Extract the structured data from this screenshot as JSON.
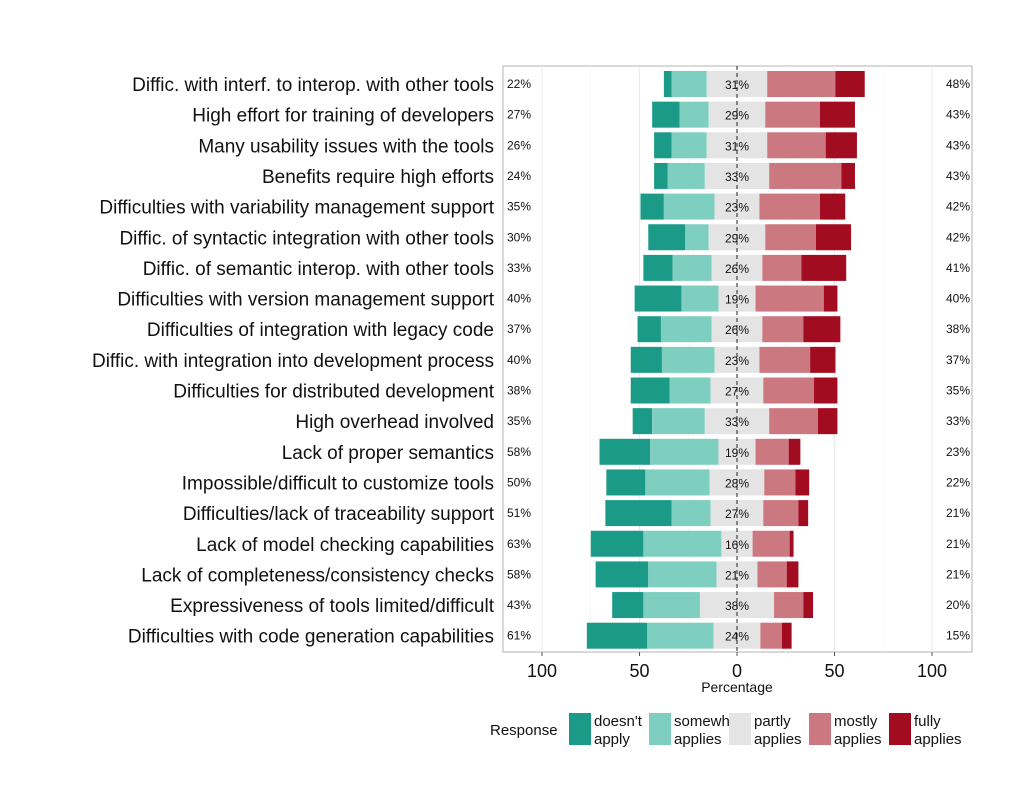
{
  "chart_data": {
    "type": "diverging-stacked-bar",
    "xlabel": "Percentage",
    "xlim": [
      -100,
      100
    ],
    "x_ticks": [
      -100,
      -50,
      0,
      50,
      100
    ],
    "x_tick_labels": [
      "100",
      "50",
      "0",
      "50",
      "100"
    ],
    "legend": {
      "title": "Response",
      "entries": [
        {
          "line1": "doesn't",
          "line2": "apply",
          "color": "#1b9a87"
        },
        {
          "line1": "somewhat",
          "line2": "applies",
          "color": "#7fcfc0"
        },
        {
          "line1": "partly",
          "line2": "applies",
          "color": "#e4e4e4"
        },
        {
          "line1": "mostly",
          "line2": "applies",
          "color": "#cc7880"
        },
        {
          "line1": "fully",
          "line2": "applies",
          "color": "#a20c20"
        }
      ]
    },
    "series_names": [
      "doesn't apply",
      "somewhat applies",
      "partly applies",
      "mostly applies",
      "fully applies"
    ],
    "rows": [
      {
        "label": "Diffic. with interf. to interop. with other tools",
        "values": [
          4,
          18,
          31,
          35,
          15
        ],
        "left_pct": "22%",
        "mid_pct": "31%",
        "right_pct": "48%"
      },
      {
        "label": "High effort for training of developers",
        "values": [
          14,
          15,
          29,
          28,
          18
        ],
        "left_pct": "27%",
        "mid_pct": "29%",
        "right_pct": "43%"
      },
      {
        "label": "Many usability issues with the tools",
        "values": [
          9,
          18,
          31,
          30,
          16
        ],
        "left_pct": "26%",
        "mid_pct": "31%",
        "right_pct": "43%"
      },
      {
        "label": "Benefits require high efforts",
        "values": [
          7,
          19,
          33,
          37,
          7
        ],
        "left_pct": "24%",
        "mid_pct": "33%",
        "right_pct": "43%"
      },
      {
        "label": "Difficulties with variability management support",
        "values": [
          12,
          26,
          23,
          31,
          13
        ],
        "left_pct": "35%",
        "mid_pct": "23%",
        "right_pct": "42%"
      },
      {
        "label": "Diffic. of syntactic integration with other tools",
        "values": [
          19,
          12,
          29,
          26,
          18
        ],
        "left_pct": "30%",
        "mid_pct": "29%",
        "right_pct": "42%"
      },
      {
        "label": "Diffic. of semantic interop. with other tools",
        "values": [
          15,
          20,
          26,
          20,
          23
        ],
        "left_pct": "33%",
        "mid_pct": "26%",
        "right_pct": "41%"
      },
      {
        "label": "Difficulties with version management support",
        "values": [
          24,
          19,
          19,
          35,
          7
        ],
        "left_pct": "40%",
        "mid_pct": "19%",
        "right_pct": "40%"
      },
      {
        "label": "Difficulties of integration with legacy code",
        "values": [
          12,
          26,
          26,
          21,
          19
        ],
        "left_pct": "37%",
        "mid_pct": "26%",
        "right_pct": "38%"
      },
      {
        "label": "Diffic. with integration into development process",
        "values": [
          16,
          27,
          23,
          26,
          13
        ],
        "left_pct": "40%",
        "mid_pct": "23%",
        "right_pct": "37%"
      },
      {
        "label": "Difficulties for distributed development",
        "values": [
          20,
          21,
          27,
          26,
          12
        ],
        "left_pct": "38%",
        "mid_pct": "27%",
        "right_pct": "35%"
      },
      {
        "label": "High overhead involved",
        "values": [
          10,
          27,
          33,
          25,
          10
        ],
        "left_pct": "35%",
        "mid_pct": "33%",
        "right_pct": "33%"
      },
      {
        "label": "Lack of proper semantics",
        "values": [
          26,
          35,
          19,
          17,
          6
        ],
        "left_pct": "58%",
        "mid_pct": "19%",
        "right_pct": "23%"
      },
      {
        "label": "Impossible/difficult to customize tools",
        "values": [
          20,
          33,
          28,
          16,
          7
        ],
        "left_pct": "50%",
        "mid_pct": "28%",
        "right_pct": "22%"
      },
      {
        "label": "Difficulties/lack of traceability support",
        "values": [
          34,
          20,
          27,
          18,
          5
        ],
        "left_pct": "51%",
        "mid_pct": "27%",
        "right_pct": "21%"
      },
      {
        "label": "Lack of model checking capabilities",
        "values": [
          27,
          40,
          16,
          19,
          2
        ],
        "left_pct": "63%",
        "mid_pct": "16%",
        "right_pct": "21%"
      },
      {
        "label": "Lack of completeness/consistency checks",
        "values": [
          27,
          35,
          21,
          15,
          6
        ],
        "left_pct": "58%",
        "mid_pct": "21%",
        "right_pct": "21%"
      },
      {
        "label": "Expressiveness of tools limited/difficult",
        "values": [
          16,
          29,
          38,
          15,
          5
        ],
        "left_pct": "43%",
        "mid_pct": "38%",
        "right_pct": "20%"
      },
      {
        "label": "Difficulties with code generation capabilities",
        "values": [
          31,
          34,
          24,
          11,
          5
        ],
        "left_pct": "61%",
        "mid_pct": "24%",
        "right_pct": "15%"
      }
    ]
  }
}
